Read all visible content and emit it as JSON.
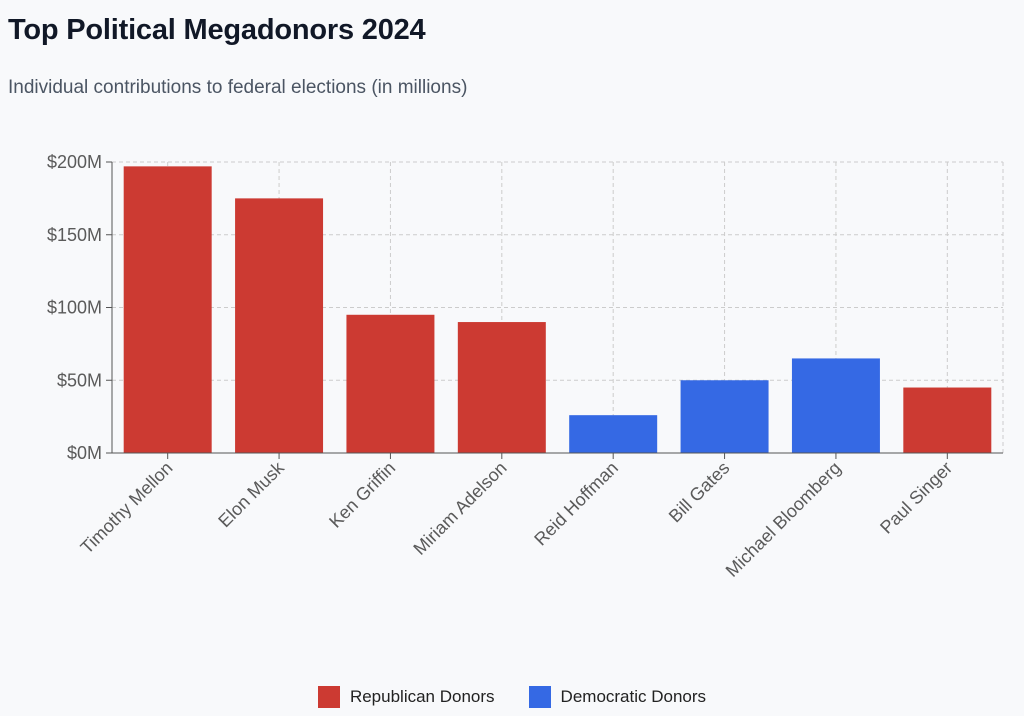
{
  "chart_data": {
    "type": "bar",
    "title": "Top Political Megadonors 2024",
    "subtitle": "Individual contributions to federal elections (in millions)",
    "categories": [
      "Timothy Mellon",
      "Elon Musk",
      "Ken Griffin",
      "Miriam Adelson",
      "Reid Hoffman",
      "Bill Gates",
      "Michael Bloomberg",
      "Paul Singer"
    ],
    "values": [
      197,
      175,
      95,
      90,
      26,
      50,
      65,
      45
    ],
    "party": [
      "Republican",
      "Republican",
      "Republican",
      "Republican",
      "Democratic",
      "Democratic",
      "Democratic",
      "Republican"
    ],
    "ylim": [
      0,
      200
    ],
    "yticks": [
      0,
      50,
      100,
      150,
      200
    ],
    "ytick_labels": [
      "$0M",
      "$50M",
      "$100M",
      "$150M",
      "$200M"
    ],
    "xlabel": "",
    "ylabel": "",
    "grid": true,
    "legend_position": "bottom-center",
    "colors": {
      "Republican": "#cc3a32",
      "Democratic": "#3569e4",
      "grid": "#cccccc",
      "axis": "#555555",
      "tick_text": "#5a5a5a"
    }
  },
  "legend": {
    "items": [
      {
        "label": "Republican Donors",
        "color": "#cc3a32"
      },
      {
        "label": "Democratic Donors",
        "color": "#3569e4"
      }
    ]
  }
}
